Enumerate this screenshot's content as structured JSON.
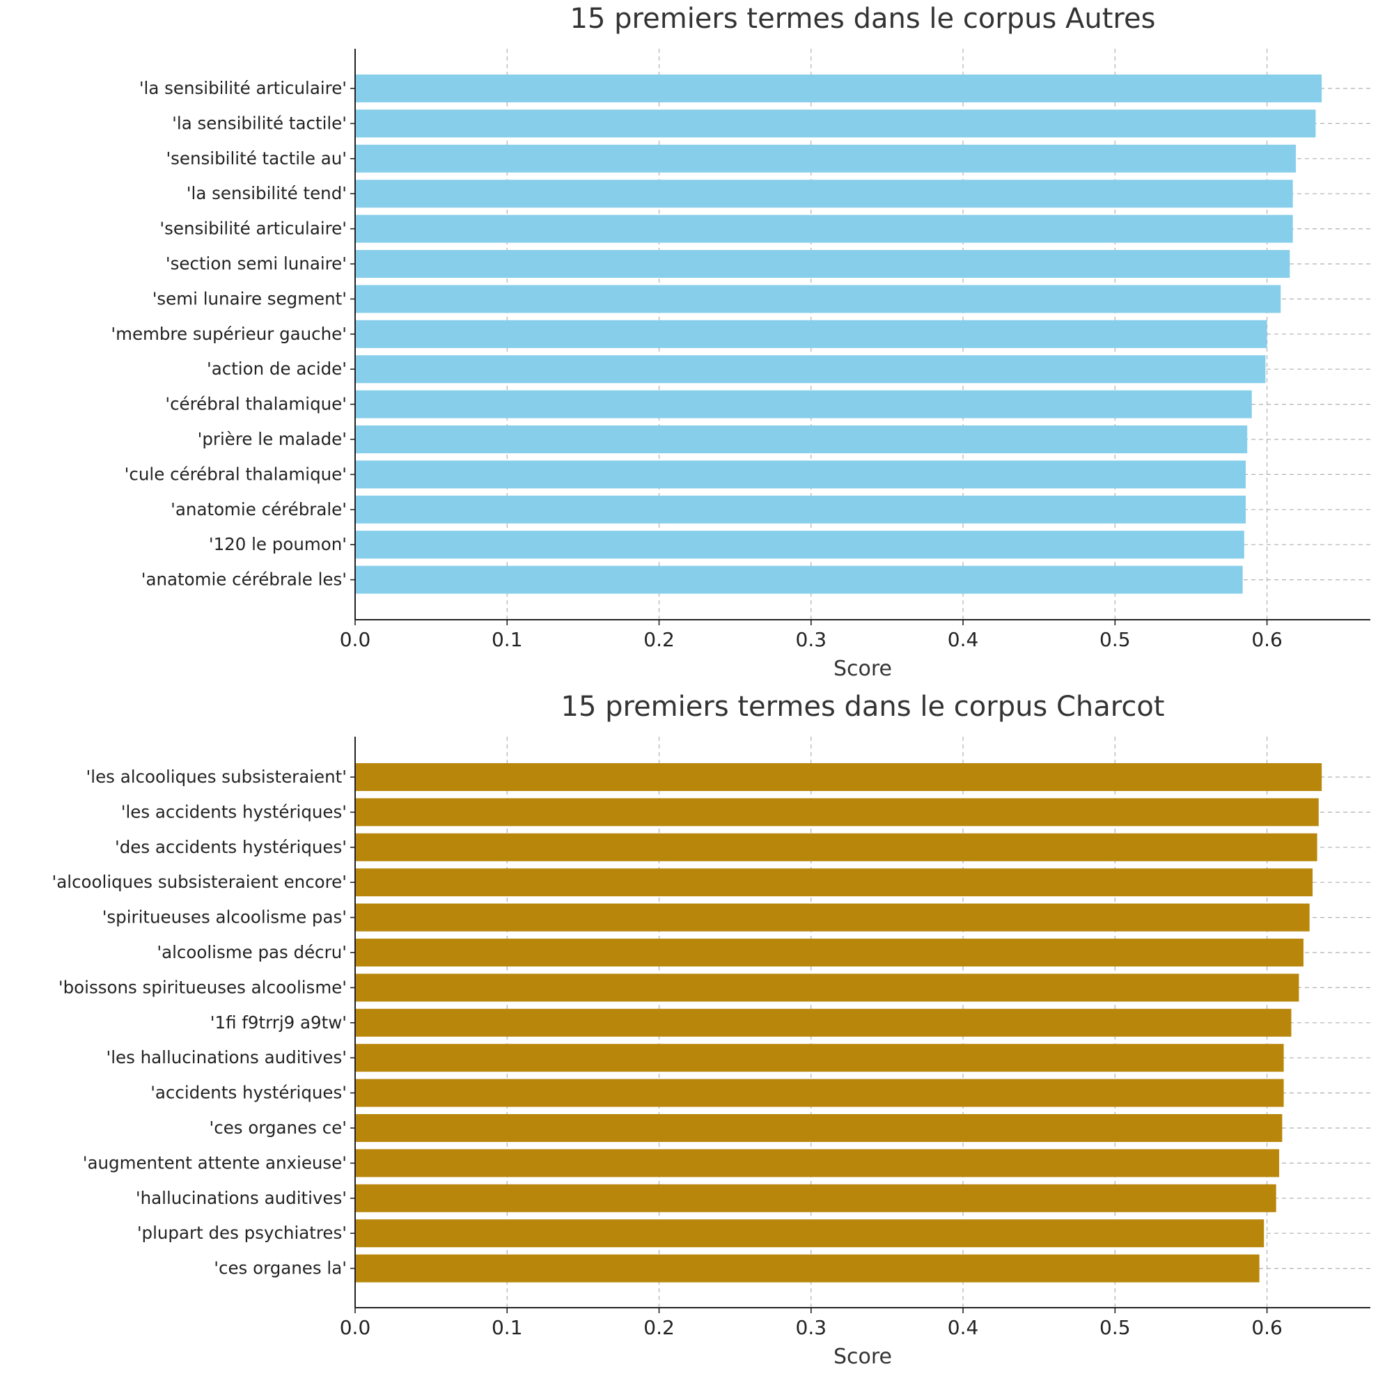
{
  "chart_data": [
    {
      "type": "bar",
      "orientation": "horizontal",
      "title": "15 premiers termes dans le corpus Autres",
      "xlabel": "Score",
      "ylabel": "",
      "xlim": [
        0,
        0.668
      ],
      "xticks": [
        "0.0",
        "0.1",
        "0.2",
        "0.3",
        "0.4",
        "0.5",
        "0.6"
      ],
      "grid": true,
      "bar_color": "#87CEEB",
      "categories": [
        "'la sensibilité articulaire'",
        "'la sensibilité tactile'",
        "'sensibilité tactile au'",
        "'la sensibilité tend'",
        "'sensibilité articulaire'",
        "'section semi lunaire'",
        "'semi lunaire segment'",
        "'membre supérieur gauche'",
        "'action de acide'",
        "'cérébral thalamique'",
        "'prière le malade'",
        "'cule cérébral thalamique'",
        "'anatomie cérébrale'",
        "'120 le poumon'",
        "'anatomie cérébrale les'"
      ],
      "values": [
        0.636,
        0.632,
        0.619,
        0.617,
        0.617,
        0.615,
        0.609,
        0.6,
        0.599,
        0.59,
        0.587,
        0.586,
        0.586,
        0.585,
        0.584
      ]
    },
    {
      "type": "bar",
      "orientation": "horizontal",
      "title": "15 premiers termes dans le corpus Charcot",
      "xlabel": "Score",
      "ylabel": "",
      "xlim": [
        0,
        0.668
      ],
      "xticks": [
        "0.0",
        "0.1",
        "0.2",
        "0.3",
        "0.4",
        "0.5",
        "0.6"
      ],
      "grid": true,
      "bar_color": "#B8860B",
      "categories": [
        "'les alcooliques subsisteraient'",
        "'les accidents hystériques'",
        "'des accidents hystériques'",
        "'alcooliques subsisteraient encore'",
        "'spiritueuses alcoolisme pas'",
        "'alcoolisme pas décru'",
        "'boissons spiritueuses alcoolisme'",
        "'1fi f9trrj9 a9tw'",
        "'les hallucinations auditives'",
        "'accidents hystériques'",
        "'ces organes ce'",
        "'augmentent attente anxieuse'",
        "'hallucinations auditives'",
        "'plupart des psychiatres'",
        "'ces organes la'"
      ],
      "values": [
        0.636,
        0.634,
        0.633,
        0.63,
        0.628,
        0.624,
        0.621,
        0.616,
        0.611,
        0.611,
        0.61,
        0.608,
        0.606,
        0.598,
        0.595
      ]
    }
  ]
}
